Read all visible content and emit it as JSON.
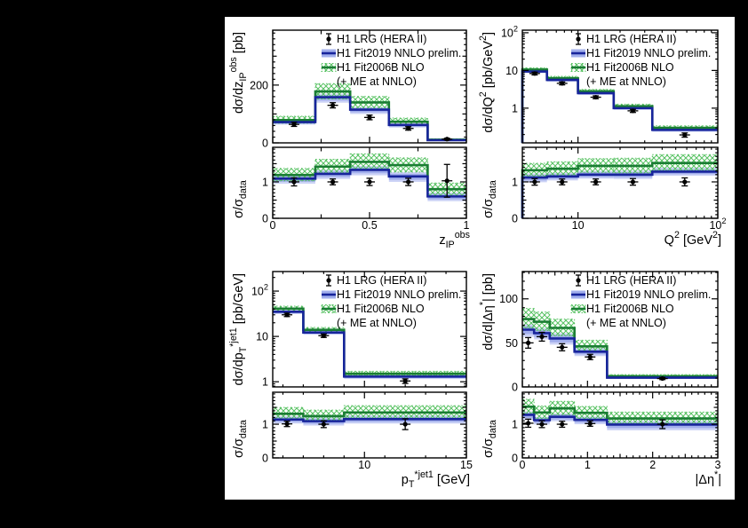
{
  "figure": {
    "colors": {
      "background": "#000000",
      "canvas": "#ffffff",
      "frame": "#000000",
      "data_marker": "#000000",
      "nnlo_line": "#17249b",
      "nnlo_band_inner": "#a2afec",
      "nnlo_band_outer": "#ccd3f6",
      "nlo_line": "#1a7d33",
      "nlo_hatch": "#56c161"
    },
    "legend": {
      "items": [
        {
          "marker": "data",
          "label": "H1 LRG (HERA II)"
        },
        {
          "marker": "nnlo",
          "label": "H1 Fit2019 NNLO prelim."
        },
        {
          "marker": "nlo",
          "label": "H1 Fit2006B NLO"
        },
        {
          "marker": "none",
          "label": "(+ ME at NNLO)"
        }
      ]
    },
    "ratio_ylabel": [
      [
        "n",
        "σ/σ"
      ],
      [
        "sub",
        "data"
      ]
    ]
  },
  "chart_data": [
    {
      "id": "zpom-obs",
      "type": "histogram-with-ratio",
      "xscale": "linear",
      "yscale": "linear",
      "xlim": [
        0,
        1
      ],
      "ylim": [
        0,
        390
      ],
      "ratio_ylim": [
        0,
        1.95
      ],
      "xlabel": [
        [
          "n",
          "z"
        ],
        [
          "sub",
          "IP"
        ],
        [
          "sup",
          "obs"
        ]
      ],
      "ylabel": [
        [
          "n",
          "dσ/dz"
        ],
        [
          "sub",
          "IP"
        ],
        [
          "sup",
          "obs"
        ],
        [
          "n",
          " [pb]"
        ]
      ],
      "xticks": {
        "major": [
          [
            0,
            "0"
          ],
          [
            0.5,
            "0.5"
          ],
          [
            1,
            "1"
          ]
        ],
        "medium": [
          0.25,
          0.75
        ]
      },
      "yticks": {
        "major": [
          [
            0,
            "0"
          ],
          [
            200,
            "200"
          ]
        ],
        "medium": [
          100,
          300
        ],
        "minor_step": 20
      },
      "ratio_yticks": {
        "major": [
          [
            0,
            "0"
          ],
          [
            1,
            "1"
          ]
        ],
        "medium": [
          0.5,
          1.5
        ],
        "minor_step": 0.1
      },
      "bin_edges": [
        0,
        0.22,
        0.4,
        0.6,
        0.8,
        1
      ],
      "nlo": {
        "val": [
          79,
          178,
          140,
          73,
          11
        ],
        "lo": [
          68,
          152,
          121,
          62,
          8.5
        ],
        "hi": [
          92,
          205,
          161,
          86,
          14
        ],
        "ratio": [
          1.19,
          1.42,
          1.55,
          1.46,
          0.8
        ],
        "ratio_lo": [
          1.03,
          1.23,
          1.36,
          1.27,
          0.62
        ],
        "ratio_hi": [
          1.37,
          1.62,
          1.77,
          1.66,
          0.97
        ]
      },
      "nnlo": {
        "val": [
          72,
          158,
          115,
          62,
          9.5
        ],
        "lo": [
          63,
          139,
          100,
          53,
          8
        ],
        "hi": [
          79,
          170,
          124,
          68,
          11
        ],
        "ratio": [
          1.09,
          1.22,
          1.33,
          1.15,
          0.6
        ],
        "ratio_lo": [
          0.95,
          1.08,
          1.18,
          1.0,
          0.47
        ],
        "ratio_hi": [
          1.2,
          1.33,
          1.44,
          1.27,
          0.71
        ]
      },
      "data": {
        "x": [
          0.11,
          0.31,
          0.5,
          0.7,
          0.9
        ],
        "y": [
          64,
          130,
          88,
          50,
          13
        ],
        "yerr": [
          7,
          9,
          8,
          6,
          3
        ],
        "ratio": [
          1,
          1,
          1,
          1,
          1.03
        ],
        "ratio_err": [
          0.11,
          0.08,
          0.1,
          0.1,
          0.45
        ]
      }
    },
    {
      "id": "q2",
      "type": "histogram-with-ratio",
      "xscale": "log",
      "yscale": "log",
      "xlim": [
        4,
        100
      ],
      "ylim": [
        0.12,
        117
      ],
      "ratio_ylim": [
        0,
        1.95
      ],
      "left_edge_drop": true,
      "xlabel": [
        [
          "n",
          "Q"
        ],
        [
          "sup",
          "2"
        ],
        [
          "n",
          " [GeV"
        ],
        [
          "sup",
          "2"
        ],
        [
          "n",
          "]"
        ]
      ],
      "ylabel": [
        [
          "n",
          "dσ/dQ"
        ],
        [
          "sup",
          "2"
        ],
        [
          "n",
          " [pb/GeV"
        ],
        [
          "sup",
          "2"
        ],
        [
          "n",
          "]"
        ]
      ],
      "xticks": {
        "major": [
          [
            10,
            "10"
          ],
          [
            100,
            "10^2"
          ]
        ]
      },
      "yticks": {
        "major": [
          [
            1,
            "1"
          ],
          [
            10,
            "10"
          ],
          [
            100,
            "10^2"
          ]
        ]
      },
      "ratio_yticks": {
        "major": [
          [
            0,
            "0"
          ],
          [
            1,
            "1"
          ]
        ],
        "medium": [
          0.5,
          1.5
        ],
        "minor_step": 0.1
      },
      "bin_edges": [
        4,
        6,
        10,
        18,
        34,
        100
      ],
      "nlo": {
        "val": [
          10.5,
          6.2,
          2.8,
          1.13,
          0.3
        ],
        "lo": [
          9.3,
          5.5,
          2.45,
          1.0,
          0.26
        ],
        "hi": [
          11.8,
          7.0,
          3.15,
          1.28,
          0.34
        ],
        "ratio": [
          1.32,
          1.36,
          1.44,
          1.44,
          1.52
        ],
        "ratio_lo": [
          1.15,
          1.19,
          1.26,
          1.25,
          1.32
        ],
        "ratio_hi": [
          1.51,
          1.55,
          1.64,
          1.65,
          1.75
        ]
      },
      "nnlo": {
        "val": [
          9.4,
          5.6,
          2.5,
          1.0,
          0.265
        ],
        "lo": [
          8.5,
          5.05,
          2.25,
          0.9,
          0.235
        ],
        "hi": [
          10.2,
          6.1,
          2.75,
          1.1,
          0.29
        ],
        "ratio": [
          1.12,
          1.15,
          1.2,
          1.2,
          1.28
        ],
        "ratio_lo": [
          0.99,
          1.04,
          1.09,
          1.08,
          1.17
        ],
        "ratio_hi": [
          1.23,
          1.25,
          1.3,
          1.31,
          1.39
        ]
      },
      "data": {
        "x": [
          4.9,
          7.7,
          13.4,
          24.7,
          58
        ],
        "y": [
          8.3,
          4.55,
          1.95,
          0.85,
          0.195
        ],
        "yerr": [
          0.7,
          0.4,
          0.17,
          0.08,
          0.025
        ],
        "ratio": [
          1,
          1,
          1,
          1,
          1
        ],
        "ratio_err": [
          0.09,
          0.08,
          0.08,
          0.09,
          0.11
        ]
      }
    },
    {
      "id": "pt-jet1",
      "type": "histogram-with-ratio",
      "xscale": "linear",
      "yscale": "log",
      "xlim": [
        5.5,
        15
      ],
      "ylim": [
        0.77,
        270
      ],
      "ratio_ylim": [
        0,
        1.95
      ],
      "xlabel": [
        [
          "n",
          "p"
        ],
        [
          "sub",
          "T"
        ],
        [
          "sup",
          "*jet1"
        ],
        [
          "n",
          " [GeV]"
        ]
      ],
      "ylabel": [
        [
          "n",
          "dσ/dp"
        ],
        [
          "sub",
          "T"
        ],
        [
          "sup",
          "*jet1"
        ],
        [
          "n",
          " [pb/GeV]"
        ]
      ],
      "xticks": {
        "major": [
          [
            10,
            "10"
          ],
          [
            15,
            "15"
          ]
        ],
        "minor_step": 1
      },
      "yticks": {
        "major": [
          [
            1,
            "1"
          ],
          [
            10,
            "10"
          ],
          [
            100,
            "10^2"
          ]
        ]
      },
      "ratio_yticks": {
        "major": [
          [
            0,
            "0"
          ],
          [
            1,
            "1"
          ]
        ],
        "medium": [
          0.5,
          1.5
        ],
        "minor_step": 0.1
      },
      "bin_edges": [
        5.5,
        7,
        9,
        15
      ],
      "nlo": {
        "val": [
          41,
          14,
          1.5
        ],
        "lo": [
          36,
          12.4,
          1.32
        ],
        "hi": [
          46.5,
          15.8,
          1.7
        ],
        "ratio": [
          1.31,
          1.24,
          1.35
        ],
        "ratio_lo": [
          1.14,
          1.08,
          1.17
        ],
        "ratio_hi": [
          1.5,
          1.42,
          1.55
        ]
      },
      "nnlo": {
        "val": [
          35,
          12.2,
          1.3
        ],
        "lo": [
          31,
          10.9,
          1.15
        ],
        "hi": [
          38.5,
          13.4,
          1.43
        ],
        "ratio": [
          1.14,
          1.09,
          1.15
        ],
        "ratio_lo": [
          1.02,
          0.96,
          1.02
        ],
        "ratio_hi": [
          1.24,
          1.2,
          1.26
        ]
      },
      "data": {
        "x": [
          6.2,
          8,
          12
        ],
        "y": [
          30,
          10.4,
          1.04
        ],
        "yerr": [
          2.6,
          0.9,
          0.12
        ],
        "ratio": [
          1.01,
          1.0,
          1.0
        ],
        "ratio_err": [
          0.08,
          0.1,
          0.16
        ]
      }
    },
    {
      "id": "delta-eta",
      "type": "histogram-with-ratio",
      "xscale": "linear",
      "yscale": "linear",
      "xlim": [
        0,
        3
      ],
      "ylim": [
        0,
        131
      ],
      "ratio_ylim": [
        0,
        1.95
      ],
      "xlabel": [
        [
          "n",
          "|Δη"
        ],
        [
          "sup",
          "*"
        ],
        [
          "n",
          "|"
        ]
      ],
      "ylabel": [
        [
          "n",
          "dσ/d|Δη"
        ],
        [
          "sup",
          "*"
        ],
        [
          "n",
          "| [pb]"
        ]
      ],
      "xticks": {
        "major": [
          [
            0,
            "0"
          ],
          [
            1,
            "1"
          ],
          [
            2,
            "2"
          ],
          [
            3,
            "3"
          ]
        ],
        "medium": [
          0.5,
          1.5,
          2.5
        ],
        "minor_step": 0.1
      },
      "yticks": {
        "major": [
          [
            0,
            "0"
          ],
          [
            50,
            "50"
          ],
          [
            100,
            "100"
          ]
        ],
        "minor_step": 10
      },
      "ratio_yticks": {
        "major": [
          [
            0,
            "0"
          ],
          [
            1,
            "1"
          ]
        ],
        "medium": [
          0.5,
          1.5
        ],
        "minor_step": 0.1
      },
      "bin_edges": [
        0,
        0.18,
        0.42,
        0.8,
        1.3,
        3
      ],
      "nlo": {
        "val": [
          77,
          74,
          67,
          46,
          12
        ],
        "lo": [
          67,
          64,
          58,
          40,
          10
        ],
        "hi": [
          89,
          85,
          77,
          53,
          14
        ],
        "ratio": [
          1.52,
          1.35,
          1.47,
          1.34,
          1.17
        ],
        "ratio_lo": [
          1.33,
          1.17,
          1.28,
          1.16,
          1.0
        ],
        "ratio_hi": [
          1.74,
          1.54,
          1.68,
          1.53,
          1.36
        ]
      },
      "nnlo": {
        "val": [
          65,
          61,
          55,
          40,
          10.5
        ],
        "lo": [
          57,
          54,
          48,
          35,
          9
        ],
        "hi": [
          71,
          67,
          61,
          44,
          12
        ],
        "ratio": [
          1.28,
          1.12,
          1.22,
          1.13,
          0.99
        ],
        "ratio_lo": [
          1.13,
          0.99,
          1.09,
          1.0,
          0.82
        ],
        "ratio_hi": [
          1.38,
          1.22,
          1.32,
          1.23,
          1.1
        ]
      },
      "data": {
        "x": [
          0.09,
          0.3,
          0.61,
          1.04,
          2.15
        ],
        "y": [
          50,
          57,
          45,
          34,
          9.5
        ],
        "yerr": [
          6,
          5,
          4,
          3,
          1.2
        ],
        "ratio": [
          1.03,
          1.0,
          1.0,
          1.02,
          1.0
        ],
        "ratio_err": [
          0.12,
          0.1,
          0.09,
          0.08,
          0.13
        ]
      }
    }
  ]
}
